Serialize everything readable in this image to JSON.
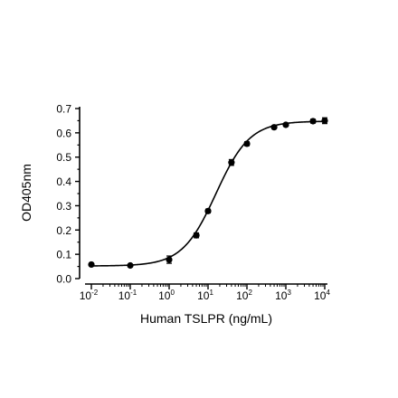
{
  "chart_data": {
    "type": "scatter",
    "title": "",
    "xlabel": "Human TSLPR (ng/mL)",
    "ylabel": "OD405nm",
    "x_scale": "log",
    "xlim": [
      0.01,
      10000
    ],
    "ylim": [
      0,
      0.7
    ],
    "x_tick_labels": [
      {
        "value": 0.01,
        "base": "10",
        "exp": "-2"
      },
      {
        "value": 0.1,
        "base": "10",
        "exp": "-1"
      },
      {
        "value": 1,
        "base": "10",
        "exp": "0"
      },
      {
        "value": 10,
        "base": "10",
        "exp": "1"
      },
      {
        "value": 100,
        "base": "10",
        "exp": "2"
      },
      {
        "value": 1000,
        "base": "10",
        "exp": "3"
      },
      {
        "value": 10000,
        "base": "10",
        "exp": "4"
      }
    ],
    "y_ticks": [
      0.0,
      0.1,
      0.2,
      0.3,
      0.4,
      0.5,
      0.6,
      0.7
    ],
    "y_tick_labels": [
      "0.0",
      "0.1",
      "0.2",
      "0.3",
      "0.4",
      "0.5",
      "0.6",
      "0.7"
    ],
    "grid": false,
    "legend": "none",
    "colors": {
      "marks": "#000000",
      "background": "#ffffff"
    },
    "series": [
      {
        "x": [
          0.01,
          0.1,
          1,
          5,
          10,
          40,
          100,
          500,
          1000,
          5000,
          10000
        ],
        "y": [
          0.058,
          0.054,
          0.078,
          0.178,
          0.278,
          0.478,
          0.555,
          0.623,
          0.633,
          0.648,
          0.65
        ],
        "error": [
          0.005,
          0.005,
          0.015,
          0.01,
          0.008,
          0.012,
          0.008,
          0.006,
          0.006,
          0.008,
          0.012
        ]
      }
    ],
    "fit_curve": {
      "type": "4PL",
      "bottom": 0.052,
      "top": 0.648,
      "ec50": 16,
      "hill": 1.0
    }
  }
}
